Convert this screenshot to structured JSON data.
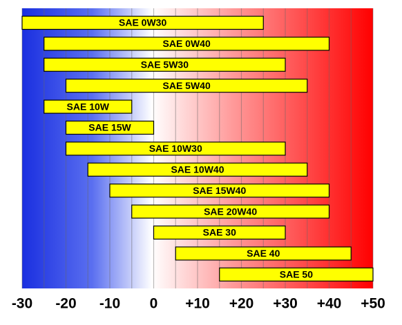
{
  "chart_data": {
    "type": "range_bar",
    "categories": [
      "SAE 0W30",
      "SAE 0W40",
      "SAE 5W30",
      "SAE 5W40",
      "SAE 10W",
      "SAE 15W",
      "SAE 10W30",
      "SAE 10W40",
      "SAE 15W40",
      "SAE 20W40",
      "SAE 30",
      "SAE 40",
      "SAE 50"
    ],
    "low": [
      -30,
      -25,
      -25,
      -20,
      -25,
      -20,
      -20,
      -15,
      -10,
      -5,
      0,
      5,
      15
    ],
    "high": [
      25,
      40,
      30,
      35,
      -5,
      0,
      30,
      35,
      40,
      40,
      30,
      45,
      50
    ],
    "color": "#ffff00",
    "xlim": [
      -30,
      50
    ],
    "xticks": [
      -30,
      -20,
      -10,
      0,
      {
        "value": 10,
        "label": "+10"
      },
      {
        "value": 20,
        "label": "+20"
      },
      {
        "value": 30,
        "label": "+30"
      },
      {
        "value": 40,
        "label": "+40"
      },
      {
        "value": 50,
        "label": "+50"
      }
    ],
    "minor_xticks": [
      -25,
      -15,
      -5,
      5,
      15,
      25,
      35,
      45
    ],
    "grid": true
  }
}
